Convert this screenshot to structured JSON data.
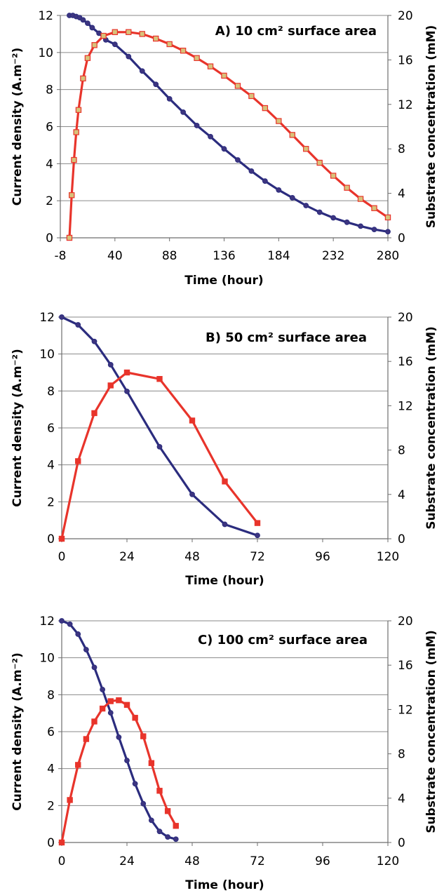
{
  "chart_data": [
    {
      "type": "line",
      "title": "A)  10 cm² surface area",
      "xlabel": "Time (hour)",
      "ylabel": "Current density (A.m⁻²)",
      "y2label": "Substrate concentration (mM)",
      "xlim": [
        -8,
        280
      ],
      "xticks": [
        -8,
        40,
        88,
        136,
        184,
        232,
        280
      ],
      "ylim": [
        0,
        12
      ],
      "yticks": [
        0,
        2,
        4,
        6,
        8,
        10,
        12
      ],
      "y2lim": [
        0,
        20
      ],
      "y2ticks": [
        0,
        4,
        8,
        12,
        16,
        20
      ],
      "grid": "horizontal",
      "series": [
        {
          "axis": "right",
          "color": "#2B2C7E",
          "marker": "circle",
          "x": [
            0,
            3,
            6,
            9,
            12,
            16,
            20,
            26,
            32,
            40,
            52,
            64,
            76,
            88,
            100,
            112,
            124,
            136,
            148,
            160,
            172,
            184,
            196,
            208,
            220,
            232,
            244,
            256,
            268,
            280
          ],
          "y": [
            20,
            20,
            19.9,
            19.8,
            19.6,
            19.3,
            18.9,
            18.4,
            17.8,
            17.4,
            16.3,
            15,
            13.8,
            12.5,
            11.3,
            10.1,
            9.1,
            8,
            7,
            6,
            5.1,
            4.3,
            3.6,
            2.9,
            2.3,
            1.8,
            1.4,
            1.05,
            0.75,
            0.55
          ]
        },
        {
          "axis": "left",
          "color": "#E8342B",
          "marker": "square",
          "x": [
            0,
            2,
            4,
            6,
            8,
            12,
            16,
            22,
            30,
            40,
            52,
            64,
            76,
            88,
            100,
            112,
            124,
            136,
            148,
            160,
            172,
            184,
            196,
            208,
            220,
            232,
            244,
            256,
            268,
            280
          ],
          "y": [
            0,
            2.3,
            4.2,
            5.7,
            6.9,
            8.6,
            9.7,
            10.4,
            10.9,
            11.1,
            11.1,
            11,
            10.75,
            10.45,
            10.1,
            9.7,
            9.25,
            8.75,
            8.2,
            7.65,
            7,
            6.3,
            5.55,
            4.8,
            4.05,
            3.35,
            2.7,
            2.1,
            1.6,
            1.1
          ]
        }
      ]
    },
    {
      "type": "line",
      "title": "B)  50 cm² surface area",
      "xlabel": "Time (hour)",
      "ylabel": "Current density (A.m⁻²)",
      "y2label": "Substrate concentration (mM)",
      "xlim": [
        0,
        120
      ],
      "xticks": [
        0,
        24,
        48,
        72,
        96,
        120
      ],
      "ylim": [
        0,
        12
      ],
      "yticks": [
        0,
        2,
        4,
        6,
        8,
        10,
        12
      ],
      "y2lim": [
        0,
        20
      ],
      "y2ticks": [
        0,
        4,
        8,
        12,
        16,
        20
      ],
      "grid": "horizontal",
      "series": [
        {
          "axis": "right",
          "color": "#2B2C7E",
          "marker": "circle",
          "x": [
            0,
            6,
            12,
            18,
            24,
            36,
            48,
            60,
            72
          ],
          "y": [
            20,
            19.3,
            17.8,
            15.7,
            13.3,
            8.3,
            4,
            1.3,
            0.3
          ]
        },
        {
          "axis": "left",
          "color": "#E8342B",
          "marker": "square",
          "x": [
            0,
            6,
            12,
            18,
            24,
            36,
            48,
            60,
            72
          ],
          "y": [
            0,
            4.2,
            6.8,
            8.3,
            9,
            8.65,
            6.4,
            3.1,
            0.85
          ]
        }
      ]
    },
    {
      "type": "line",
      "title": "C)  100 cm² surface area",
      "xlabel": "Time (hour)",
      "ylabel": "Current density (A.m⁻²)",
      "y2label": "Substrate concentration (mM)",
      "xlim": [
        0,
        120
      ],
      "xticks": [
        0,
        24,
        48,
        72,
        96,
        120
      ],
      "ylim": [
        0,
        12
      ],
      "yticks": [
        0,
        2,
        4,
        6,
        8,
        10,
        12
      ],
      "y2lim": [
        0,
        20
      ],
      "y2ticks": [
        0,
        4,
        8,
        12,
        16,
        20
      ],
      "grid": "horizontal",
      "series": [
        {
          "axis": "right",
          "color": "#2B2C7E",
          "marker": "circle",
          "x": [
            0,
            3,
            6,
            9,
            12,
            15,
            18,
            21,
            24,
            27,
            30,
            33,
            36,
            39,
            42
          ],
          "y": [
            20,
            19.7,
            18.8,
            17.4,
            15.8,
            13.8,
            11.7,
            9.5,
            7.4,
            5.3,
            3.5,
            2,
            1,
            0.5,
            0.3
          ]
        },
        {
          "axis": "left",
          "color": "#E8342B",
          "marker": "square",
          "x": [
            0,
            3,
            6,
            9,
            12,
            15,
            18,
            21,
            24,
            27,
            30,
            33,
            36,
            39,
            42
          ],
          "y": [
            0,
            2.3,
            4.2,
            5.6,
            6.55,
            7.25,
            7.65,
            7.7,
            7.45,
            6.75,
            5.75,
            4.3,
            2.8,
            1.7,
            0.9
          ]
        }
      ]
    }
  ]
}
